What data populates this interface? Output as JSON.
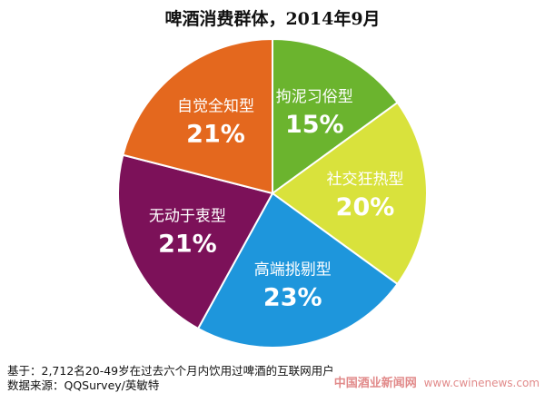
{
  "title": "啤酒消费群体，2014年9月",
  "chart_data": {
    "type": "pie",
    "title": "啤酒消费群体，2014年9月",
    "slices": [
      {
        "name": "拘泥习俗型",
        "value": 15,
        "label": "15%",
        "color": "#6bb42e"
      },
      {
        "name": "社交狂热型",
        "value": 20,
        "label": "20%",
        "color": "#d9e23c"
      },
      {
        "name": "高端挑剔型",
        "value": 23,
        "label": "23%",
        "color": "#1e96dc"
      },
      {
        "name": "无动于衷型",
        "value": 21,
        "label": "21%",
        "color": "#7c1159"
      },
      {
        "name": "自觉全知型",
        "value": 21,
        "label": "21%",
        "color": "#e4681e"
      }
    ],
    "start": "top, clockwise"
  },
  "footnote": {
    "basis": "基于：2,712名20-49岁在过去六个月内饮用过啤酒的互联网用户",
    "source": "数据来源：QQSurvey/英敏特"
  },
  "watermark": {
    "site_name": "中国酒业新闻网",
    "url": "www.cwinenews.com"
  }
}
